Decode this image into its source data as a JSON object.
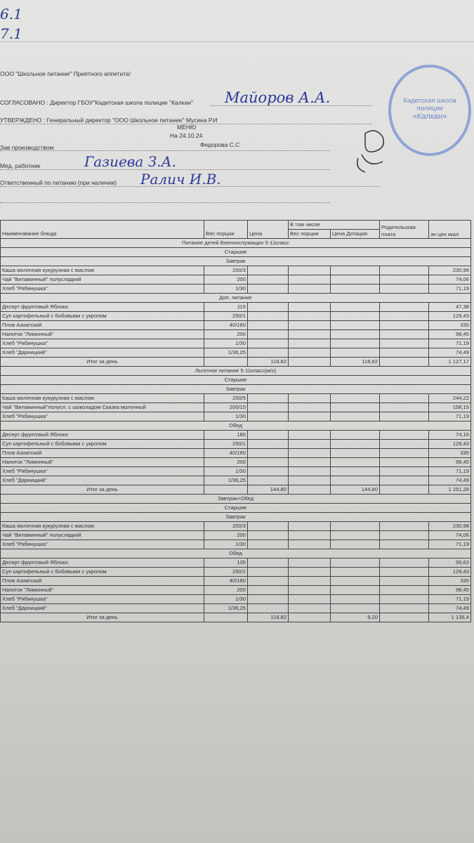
{
  "top_notes": [
    "6.1",
    "7.1"
  ],
  "header": {
    "company_line": "ООО \"Школьное питание\" Приятного аппетита!",
    "agreed": "СОГЛАСОВАНО : Директор ГБОУ\"Кадетская школа полиции \"Калкан\"",
    "agreed_signature": "Майоров А.А.",
    "approved": "УТВЕРЖДЕНО : Генеральный директор \"ООО Школьное питание\" Мусина Р.И",
    "menu_title": "МЕНЮ",
    "date": "На 24.10.24",
    "production_label": "Зав производством",
    "production_name": "Федорова С.С",
    "medic_label": "Мед. работник",
    "medic_signature": "Газиева З.А.",
    "responsible_label": "Ответственный по питанию (при наличии)",
    "responsible_signature": "Ралич И.В."
  },
  "stamp": {
    "text_line1": "Кадетская школа",
    "text_line2": "полиции",
    "text_line3": "«Калкан»",
    "color": "#8fa3d6"
  },
  "table": {
    "columns": {
      "name": "Наименование блюда",
      "weight": "Вес порции",
      "price": "Цена",
      "including": "В том числе",
      "inc_weight": "Вес порции",
      "inc_price": "Цена Дотация",
      "parent_fee": "Родительская плата",
      "energy": "эн цен ккал"
    },
    "rows": [
      {
        "type": "sec",
        "text": "Питание детей Военнослужащих 5-11класс"
      },
      {
        "type": "sec",
        "text": "Старшие"
      },
      {
        "type": "sec",
        "text": "Завтрак"
      },
      {
        "type": "item",
        "name": "Каша молочная кукурузная с маслом",
        "weight": "200/3",
        "kcal": "230,98"
      },
      {
        "type": "item",
        "name": "Чай \"Витаминный\" полусладкий",
        "weight": "200",
        "kcal": "74,06"
      },
      {
        "type": "item",
        "name": "Хлеб \"Рябинушка\"",
        "weight": "1/30",
        "kcal": "71,19"
      },
      {
        "type": "sec",
        "text": "Доп. питание"
      },
      {
        "type": "item",
        "name": "Десерт фруктовый Яблоко",
        "weight": "115",
        "kcal": "47,38"
      },
      {
        "type": "item",
        "name": "Суп картофельный с бобовыми с укропом",
        "weight": "250/1",
        "kcal": "129,43"
      },
      {
        "type": "item",
        "name": "Плов Азиатский",
        "weight": "40/160",
        "kcal": "330"
      },
      {
        "type": "item",
        "name": "Напиток \"Лимонный\"",
        "weight": "200",
        "kcal": "98,45"
      },
      {
        "type": "item",
        "name": "Хлеб \"Рябинушка\"",
        "weight": "1/30",
        "kcal": "71,19"
      },
      {
        "type": "item",
        "name": "Хлеб \"Дарницкий\"",
        "weight": "1/36,25",
        "kcal": "74,49"
      },
      {
        "type": "total",
        "name": "Итог за день",
        "price": "118,82",
        "inc_price": "118,82",
        "kcal": "1 127,17"
      },
      {
        "type": "sec",
        "text": "Льготное питание 5-11класс(м/о)"
      },
      {
        "type": "sec",
        "text": "Старшие"
      },
      {
        "type": "sec",
        "text": "Завтрак"
      },
      {
        "type": "item",
        "name": "Каша молочная кукурузная с маслом",
        "weight": "200/5",
        "kcal": "244,22"
      },
      {
        "type": "item",
        "name": "Чай \"Витаминный\"полусл. с шоколадом Сказка молочный",
        "weight": "200/15",
        "kcal": "158,15"
      },
      {
        "type": "item",
        "name": "Хлеб \"Рябинушка\"",
        "weight": "1/30",
        "kcal": "71,19"
      },
      {
        "type": "sec",
        "text": "Обед"
      },
      {
        "type": "item",
        "name": "Десерт фруктовый Яблоко",
        "weight": "180",
        "kcal": "74,16"
      },
      {
        "type": "item",
        "name": "Суп картофельный с бобовыми с укропом",
        "weight": "250/1",
        "kcal": "129,43"
      },
      {
        "type": "item",
        "name": "Плов Азиатский",
        "weight": "40/160",
        "kcal": "330"
      },
      {
        "type": "item",
        "name": "Напиток \"Лимонный\"",
        "weight": "200",
        "kcal": "98,45"
      },
      {
        "type": "item",
        "name": "Хлеб \"Рябинушка\"",
        "weight": "1/30",
        "kcal": "71,19"
      },
      {
        "type": "item",
        "name": "Хлеб \"Дарницкий\"",
        "weight": "1/36,25",
        "kcal": "74,49"
      },
      {
        "type": "total",
        "name": "Итог за день",
        "price": "144,80",
        "inc_price": "144,80",
        "kcal": "1 251,28"
      },
      {
        "type": "sec",
        "text": "Завтрак+Обед"
      },
      {
        "type": "sec",
        "text": "Старшие"
      },
      {
        "type": "sec",
        "text": "Завтрак"
      },
      {
        "type": "item",
        "name": "Каша молочная кукурузная с маслом",
        "weight": "200/3",
        "kcal": "230,98"
      },
      {
        "type": "item",
        "name": "Чай \"Витаминный\" полусладкий",
        "weight": "200",
        "kcal": "74,06"
      },
      {
        "type": "item",
        "name": "Хлеб \"Рябинушка\"",
        "weight": "1/30",
        "kcal": "71,19"
      },
      {
        "type": "sec",
        "text": "Обед"
      },
      {
        "type": "item",
        "name": "Десерт фруктовый Яблоко",
        "weight": "135",
        "kcal": "55,62"
      },
      {
        "type": "item",
        "name": "Суп картофельный с бобовыми с укропом",
        "weight": "250/1",
        "kcal": "129,43"
      },
      {
        "type": "item",
        "name": "Плов Азиатский",
        "weight": "40/160",
        "kcal": "330"
      },
      {
        "type": "item",
        "name": "Напиток \"Лимонный\"",
        "weight": "200",
        "kcal": "98,45"
      },
      {
        "type": "item",
        "name": "Хлеб \"Рябинушка\"",
        "weight": "1/30",
        "kcal": "71,19"
      },
      {
        "type": "item",
        "name": "Хлеб \"Дарницкий\"",
        "weight": "1/36,25",
        "kcal": "74,49"
      },
      {
        "type": "total",
        "name": "Итог за день",
        "price": "118,82",
        "inc_price": "9,20",
        "kcal": "1 135,4"
      }
    ]
  }
}
